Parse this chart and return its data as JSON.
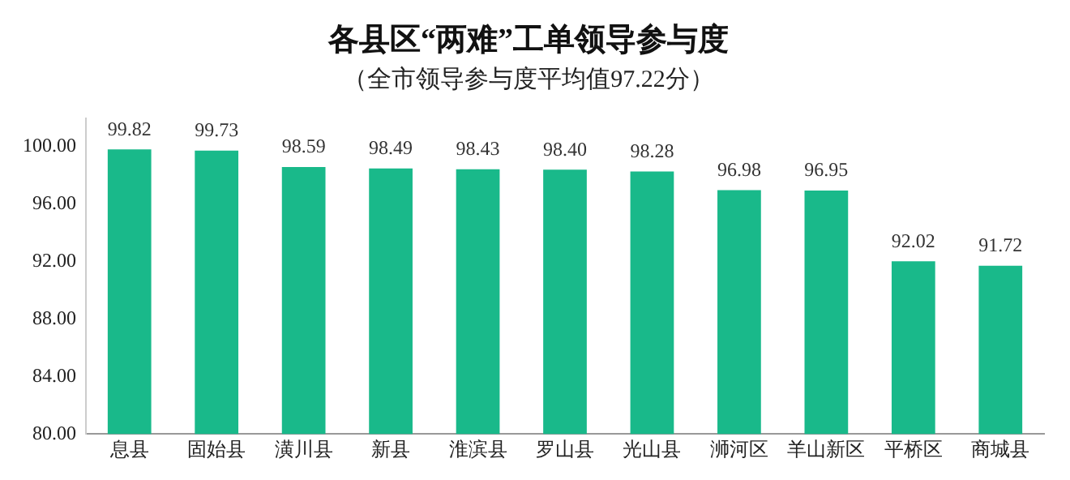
{
  "chart_data": {
    "type": "bar",
    "title": "各县区“两难”工单领导参与度",
    "subtitle": "（全市领导参与度平均值97.22分）",
    "categories": [
      "息县",
      "固始县",
      "潢川县",
      "新县",
      "淮滨县",
      "罗山县",
      "光山县",
      "浉河区",
      "羊山新区",
      "平桥区",
      "商城县"
    ],
    "values": [
      99.82,
      99.73,
      98.59,
      98.49,
      98.43,
      98.4,
      98.28,
      96.98,
      96.95,
      92.02,
      91.72
    ],
    "value_labels": [
      "99.82",
      "99.73",
      "98.59",
      "98.49",
      "98.43",
      "98.40",
      "98.28",
      "96.98",
      "96.95",
      "92.02",
      "91.72"
    ],
    "color": "#19b98a",
    "ylim": [
      80,
      102
    ],
    "yticks": [
      {
        "value": 80,
        "label": "80.00"
      },
      {
        "value": 84,
        "label": "84.00"
      },
      {
        "value": 88,
        "label": "88.00"
      },
      {
        "value": 92,
        "label": "92.00"
      },
      {
        "value": 96,
        "label": "96.00"
      },
      {
        "value": 100,
        "label": "100.00"
      }
    ],
    "grid": false,
    "legend": false
  }
}
